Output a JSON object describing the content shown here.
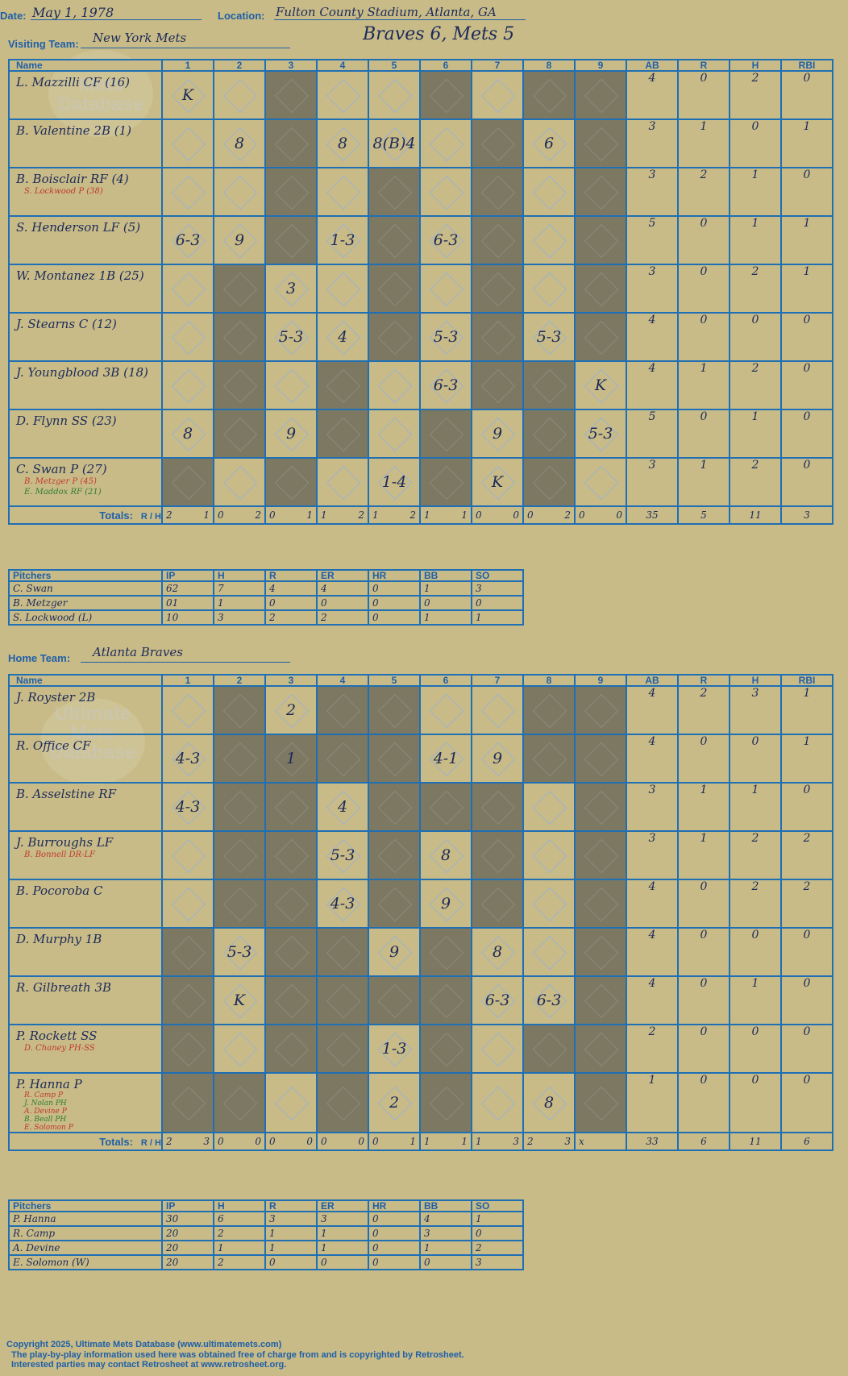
{
  "header": {
    "date_label": "Date:",
    "date": "May 1, 1978",
    "location_label": "Location:",
    "location": "Fulton County Stadium, Atlanta, GA",
    "visiting_label": "Visiting Team:",
    "visiting_team": "New York Mets",
    "score_title": "Braves 6, Mets 5",
    "home_label": "Home Team:",
    "home_team": "Atlanta Braves"
  },
  "columns": {
    "name": "Name",
    "innings": [
      "1",
      "2",
      "3",
      "4",
      "5",
      "6",
      "7",
      "8",
      "9"
    ],
    "stats": [
      "AB",
      "R",
      "H",
      "RBI"
    ]
  },
  "watermark": "Ultimate Mets Database",
  "visitors": {
    "rows": [
      {
        "name": "L. Mazzilli CF (16)",
        "subs": [],
        "cells": [
          "K",
          "",
          "",
          "",
          "",
          "",
          "",
          "",
          ""
        ],
        "stats": [
          "4",
          "0",
          "2",
          "0"
        ]
      },
      {
        "name": "B. Valentine 2B (1)",
        "subs": [],
        "cells": [
          "",
          "8",
          "",
          "8",
          "8(B)4",
          "",
          "",
          "6",
          ""
        ],
        "stats": [
          "3",
          "1",
          "0",
          "1"
        ]
      },
      {
        "name": "B. Boisclair RF (4)",
        "subs": [
          "S. Lockwood P (38)"
        ],
        "cells": [
          "",
          "",
          "",
          "",
          "",
          "",
          "",
          "",
          ""
        ],
        "stats": [
          "3",
          "2",
          "1",
          "0"
        ]
      },
      {
        "name": "S. Henderson LF (5)",
        "subs": [],
        "cells": [
          "6-3",
          "9",
          "",
          "1-3",
          "",
          "6-3",
          "",
          "",
          ""
        ],
        "stats": [
          "5",
          "0",
          "1",
          "1"
        ]
      },
      {
        "name": "W. Montanez 1B (25)",
        "subs": [],
        "cells": [
          "",
          "",
          "3",
          "",
          "",
          "",
          "",
          "",
          ""
        ],
        "stats": [
          "3",
          "0",
          "2",
          "1"
        ]
      },
      {
        "name": "J. Stearns C (12)",
        "subs": [],
        "cells": [
          "",
          "",
          "5-3",
          "4",
          "",
          "5-3",
          "",
          "5-3",
          ""
        ],
        "stats": [
          "4",
          "0",
          "0",
          "0"
        ]
      },
      {
        "name": "J. Youngblood 3B (18)",
        "subs": [],
        "cells": [
          "",
          "",
          "",
          "",
          "",
          "6-3",
          "",
          "",
          "K"
        ],
        "stats": [
          "4",
          "1",
          "2",
          "0"
        ]
      },
      {
        "name": "D. Flynn SS (23)",
        "subs": [],
        "cells": [
          "8",
          "",
          "9",
          "",
          "",
          "",
          "9",
          "",
          "5-3"
        ],
        "stats": [
          "5",
          "0",
          "1",
          "0"
        ]
      },
      {
        "name": "C. Swan P (27)",
        "subs": [
          "B. Metzger P (45)",
          "E. Maddox RF (21)"
        ],
        "cells": [
          "",
          "",
          "",
          "",
          "1-4",
          "",
          "K",
          "",
          ""
        ],
        "stats": [
          "3",
          "1",
          "2",
          "0"
        ]
      }
    ],
    "totals_label": "Totals:",
    "rh": [
      "R",
      "H"
    ],
    "totals": [
      [
        "2",
        "1"
      ],
      [
        "0",
        "2"
      ],
      [
        "0",
        "1"
      ],
      [
        "1",
        "2"
      ],
      [
        "1",
        "2"
      ],
      [
        "1",
        "1"
      ],
      [
        "0",
        "0"
      ],
      [
        "0",
        "2"
      ],
      [
        "0",
        "0"
      ]
    ],
    "stat_totals": [
      "35",
      "5",
      "11",
      "3"
    ],
    "pitchers_title": "Pitchers",
    "pitcher_cols": [
      "IP",
      "H",
      "R",
      "ER",
      "HR",
      "BB",
      "SO"
    ],
    "pitchers": [
      [
        "C. Swan",
        "62",
        "7",
        "4",
        "4",
        "0",
        "1",
        "3"
      ],
      [
        "B. Metzger",
        "01",
        "1",
        "0",
        "0",
        "0",
        "0",
        "0"
      ],
      [
        "S. Lockwood (L)",
        "10",
        "3",
        "2",
        "2",
        "0",
        "1",
        "1"
      ]
    ]
  },
  "home": {
    "rows": [
      {
        "name": "J. Royster 2B",
        "subs": [],
        "cells": [
          "",
          "",
          "2",
          "",
          "",
          "",
          "",
          "",
          ""
        ],
        "stats": [
          "4",
          "2",
          "3",
          "1"
        ]
      },
      {
        "name": "R. Office CF",
        "subs": [],
        "cells": [
          "4-3",
          "",
          "1",
          "",
          "",
          "4-1",
          "9",
          "",
          ""
        ],
        "stats": [
          "4",
          "0",
          "0",
          "1"
        ]
      },
      {
        "name": "B. Asselstine RF",
        "subs": [],
        "cells": [
          "4-3",
          "",
          "",
          "4",
          "",
          "",
          "",
          "",
          ""
        ],
        "stats": [
          "3",
          "1",
          "1",
          "0"
        ]
      },
      {
        "name": "J. Burroughs LF",
        "subs": [
          "B. Bonnell DR-LF"
        ],
        "cells": [
          "",
          "",
          "",
          "5-3",
          "",
          "8",
          "",
          "",
          ""
        ],
        "stats": [
          "3",
          "1",
          "2",
          "2"
        ]
      },
      {
        "name": "B. Pocoroba C",
        "subs": [],
        "cells": [
          "",
          "",
          "",
          "4-3",
          "",
          "9",
          "",
          "",
          ""
        ],
        "stats": [
          "4",
          "0",
          "2",
          "2"
        ]
      },
      {
        "name": "D. Murphy 1B",
        "subs": [],
        "cells": [
          "",
          "5-3",
          "",
          "",
          "9",
          "",
          "8",
          "",
          ""
        ],
        "stats": [
          "4",
          "0",
          "0",
          "0"
        ]
      },
      {
        "name": "R. Gilbreath 3B",
        "subs": [],
        "cells": [
          "",
          "K",
          "",
          "",
          "",
          "",
          "6-3",
          "6-3",
          ""
        ],
        "stats": [
          "4",
          "0",
          "1",
          "0"
        ]
      },
      {
        "name": "P. Rockett SS",
        "subs": [
          "D. Chaney PH-SS"
        ],
        "cells": [
          "",
          "",
          "",
          "",
          "1-3",
          "",
          "",
          "",
          ""
        ],
        "stats": [
          "2",
          "0",
          "0",
          "0"
        ]
      },
      {
        "name": "P. Hanna P",
        "subs": [
          "R. Camp P",
          "J. Nolan PH",
          "A. Devine P",
          "B. Beall PH",
          "E. Solomon P"
        ],
        "cells": [
          "",
          "",
          "",
          "",
          "2",
          "",
          "",
          "8",
          ""
        ],
        "stats": [
          "1",
          "0",
          "0",
          "0"
        ]
      }
    ],
    "totals_label": "Totals:",
    "rh": [
      "R",
      "H"
    ],
    "totals": [
      [
        "2",
        "3"
      ],
      [
        "0",
        "0"
      ],
      [
        "0",
        "0"
      ],
      [
        "0",
        "0"
      ],
      [
        "0",
        "1"
      ],
      [
        "1",
        "1"
      ],
      [
        "1",
        "3"
      ],
      [
        "2",
        "3"
      ],
      [
        "x",
        ""
      ]
    ],
    "stat_totals": [
      "33",
      "6",
      "11",
      "6"
    ],
    "pitchers_title": "Pitchers",
    "pitcher_cols": [
      "IP",
      "H",
      "R",
      "ER",
      "HR",
      "BB",
      "SO"
    ],
    "pitchers": [
      [
        "P. Hanna",
        "30",
        "6",
        "3",
        "3",
        "0",
        "4",
        "1"
      ],
      [
        "R. Camp",
        "20",
        "2",
        "1",
        "1",
        "0",
        "3",
        "0"
      ],
      [
        "A. Devine",
        "20",
        "1",
        "1",
        "1",
        "0",
        "1",
        "2"
      ],
      [
        "E. Solomon (W)",
        "20",
        "2",
        "0",
        "0",
        "0",
        "0",
        "3"
      ]
    ]
  },
  "footer": {
    "line1": "Copyright 2025, Ultimate Mets Database (www.ultimatemets.com)",
    "line2": "The play-by-play information used here was obtained free of charge from and is copyrighted by Retrosheet.",
    "line3": "Interested parties may contact Retrosheet at www.retrosheet.org."
  }
}
